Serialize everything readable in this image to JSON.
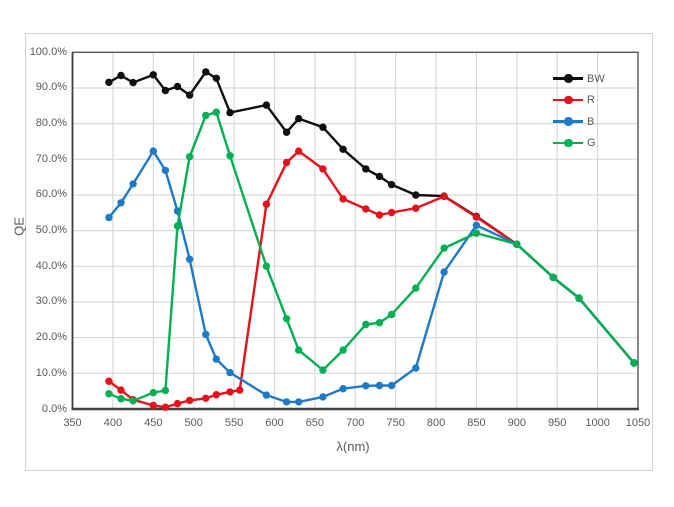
{
  "chart_data": {
    "type": "line",
    "title": "",
    "xlabel": "λ(nm)",
    "ylabel": "QE",
    "xlim": [
      350,
      1050
    ],
    "ylim": [
      0,
      100
    ],
    "grid": true,
    "legend_position": "inside-top-right",
    "x_ticks": [
      350,
      400,
      450,
      500,
      550,
      600,
      650,
      700,
      750,
      800,
      850,
      900,
      950,
      1000,
      1050
    ],
    "x_tick_labels": [
      "350",
      "400",
      "450",
      "500",
      "550",
      "600",
      "650",
      "700",
      "750",
      "800",
      "850",
      "900",
      "950",
      "1000",
      "1050"
    ],
    "y_ticks": [
      0,
      10,
      20,
      30,
      40,
      50,
      60,
      70,
      80,
      90,
      100
    ],
    "y_tick_labels": [
      "0.0%",
      "10.0%",
      "20.0%",
      "30.0%",
      "40.0%",
      "50.0%",
      "60.0%",
      "70.0%",
      "80.0%",
      "90.0%",
      "100.0%"
    ],
    "series": [
      {
        "name": "BW",
        "color": "#0f0f0f",
        "x": [
          395,
          410,
          425,
          450,
          465,
          480,
          495,
          515,
          528,
          545,
          590,
          615,
          630,
          660,
          685,
          713,
          730,
          745,
          775,
          810,
          850,
          900,
          945,
          977,
          1045
        ],
        "y": [
          91.6,
          93.5,
          91.5,
          93.7,
          89.3,
          90.4,
          88.0,
          94.5,
          92.7,
          83.1,
          85.2,
          77.6,
          81.4,
          79.0,
          72.8,
          67.3,
          65.2,
          62.9,
          60.0,
          59.7,
          54.0,
          46.2,
          36.9,
          31.1,
          12.9
        ]
      },
      {
        "name": "R",
        "color": "#e8101a",
        "x": [
          395,
          410,
          425,
          450,
          465,
          480,
          495,
          515,
          528,
          545,
          557,
          590,
          615,
          630,
          660,
          685,
          713,
          730,
          745,
          775,
          810,
          850,
          900,
          945,
          977,
          1045
        ],
        "y": [
          7.8,
          5.3,
          2.6,
          1.0,
          0.5,
          1.5,
          2.4,
          3.0,
          4.0,
          4.8,
          5.3,
          57.4,
          69.1,
          72.3,
          67.3,
          58.9,
          56.1,
          54.4,
          55.1,
          56.3,
          59.6,
          53.8,
          46.2,
          36.9,
          31.1,
          12.9
        ]
      },
      {
        "name": "B",
        "color": "#1e7ac6",
        "x": [
          395,
          410,
          425,
          450,
          465,
          480,
          495,
          515,
          528,
          545,
          590,
          615,
          630,
          660,
          685,
          713,
          730,
          745,
          775,
          810,
          850,
          900,
          945,
          977,
          1045
        ],
        "y": [
          53.7,
          57.8,
          63.1,
          72.3,
          66.9,
          55.5,
          42.0,
          20.9,
          14.0,
          10.2,
          3.9,
          2.0,
          2.0,
          3.4,
          5.7,
          6.5,
          6.6,
          6.6,
          11.5,
          38.4,
          51.5,
          46.2,
          36.9,
          31.1,
          12.9
        ]
      },
      {
        "name": "G",
        "color": "#00b052",
        "x": [
          395,
          410,
          425,
          450,
          465,
          480,
          495,
          515,
          528,
          545,
          590,
          615,
          630,
          660,
          685,
          713,
          730,
          745,
          775,
          810,
          850,
          900,
          945,
          977,
          1045
        ],
        "y": [
          4.3,
          2.9,
          2.3,
          4.6,
          5.2,
          51.3,
          70.7,
          82.3,
          83.2,
          71.0,
          40.0,
          25.3,
          16.5,
          10.9,
          16.5,
          23.7,
          24.2,
          26.5,
          33.9,
          45.1,
          49.3,
          46.2,
          36.9,
          31.1,
          12.9
        ]
      }
    ],
    "colors": {
      "grid": "#d9d9d9",
      "axis": "#595959",
      "axis_dark": "#404040",
      "text": "#595959",
      "frame_border": "#cdd1d4",
      "background": "#ffffff"
    }
  }
}
